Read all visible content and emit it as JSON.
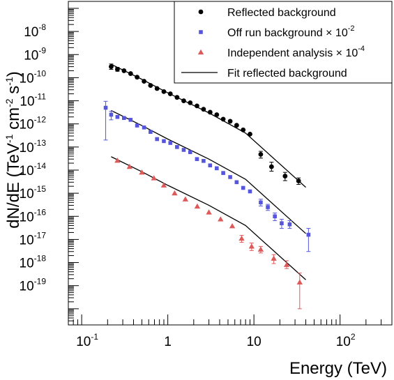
{
  "chart_data": {
    "type": "scatter",
    "xlabel": "Energy (TeV)",
    "ylabel": "dN/dE (TeV^-1 cm^-2 s^-1)",
    "ylabel_parts": {
      "prefix": "dN/dE (TeV",
      "exp1": "-1",
      "mid1": " cm",
      "exp2": "-2",
      "mid2": " s",
      "exp3": "-1",
      "suffix": ")"
    },
    "x_scale": "log",
    "y_scale": "log",
    "xlim": [
      0.07,
      400
    ],
    "ylim": [
      2e-21,
      2e-07
    ],
    "grid": false,
    "legend_position": "top-right",
    "x_ticks": [
      {
        "value": 0.1,
        "base": "10",
        "exp": "-1"
      },
      {
        "value": 1,
        "base": "1",
        "exp": ""
      },
      {
        "value": 10,
        "base": "10",
        "exp": ""
      },
      {
        "value": 100,
        "base": "10",
        "exp": "2"
      }
    ],
    "y_ticks": [
      {
        "value": 1e-08,
        "base": "10",
        "exp": "-8"
      },
      {
        "value": 1e-09,
        "base": "10",
        "exp": "-9"
      },
      {
        "value": 1e-10,
        "base": "10",
        "exp": "-10"
      },
      {
        "value": 1e-11,
        "base": "10",
        "exp": "-11"
      },
      {
        "value": 1e-12,
        "base": "10",
        "exp": "-12"
      },
      {
        "value": 1e-13,
        "base": "10",
        "exp": "-13"
      },
      {
        "value": 1e-14,
        "base": "10",
        "exp": "-14"
      },
      {
        "value": 1e-15,
        "base": "10",
        "exp": "-15"
      },
      {
        "value": 1e-16,
        "base": "10",
        "exp": "-16"
      },
      {
        "value": 1e-17,
        "base": "10",
        "exp": "-17"
      },
      {
        "value": 1e-18,
        "base": "10",
        "exp": "-18"
      },
      {
        "value": 1e-19,
        "base": "10",
        "exp": "-19"
      }
    ],
    "legend": [
      {
        "label": "Reflected background",
        "sup": "",
        "marker": "circle",
        "color": "#000000"
      },
      {
        "label": "Off run background × 10",
        "sup": "-2",
        "marker": "square",
        "color": "#5555dd"
      },
      {
        "label": "Independent analysis × 10",
        "sup": "-4",
        "marker": "triangle",
        "color": "#dd5a5a"
      },
      {
        "label": "Fit reflected background",
        "sup": "",
        "marker": "line",
        "color": "#000000"
      }
    ],
    "series": [
      {
        "name": "Reflected background",
        "marker": "circle",
        "color": "#000000",
        "points": [
          {
            "x": 0.22,
            "y": 3e-10,
            "lo": 2.3e-10,
            "hi": 3.9e-10
          },
          {
            "x": 0.26,
            "y": 2.3e-10,
            "lo": 1.9e-10,
            "hi": 2.8e-10
          },
          {
            "x": 0.31,
            "y": 2e-10
          },
          {
            "x": 0.37,
            "y": 1.5e-10
          },
          {
            "x": 0.44,
            "y": 1.05e-10
          },
          {
            "x": 0.53,
            "y": 7e-11
          },
          {
            "x": 0.63,
            "y": 4.6e-11
          },
          {
            "x": 0.75,
            "y": 3.4e-11
          },
          {
            "x": 0.9,
            "y": 2.5e-11
          },
          {
            "x": 1.07,
            "y": 2e-11
          },
          {
            "x": 1.28,
            "y": 1.4e-11
          },
          {
            "x": 1.53,
            "y": 1e-11
          },
          {
            "x": 1.82,
            "y": 8.2e-12
          },
          {
            "x": 2.18,
            "y": 6e-12
          },
          {
            "x": 2.6,
            "y": 4.3e-12
          },
          {
            "x": 3.1,
            "y": 3.2e-12
          },
          {
            "x": 3.7,
            "y": 2.5e-12
          },
          {
            "x": 4.4,
            "y": 1.6e-12
          },
          {
            "x": 5.3,
            "y": 1.3e-12
          },
          {
            "x": 6.3,
            "y": 8.7e-13
          },
          {
            "x": 7.5,
            "y": 5.5e-13
          },
          {
            "x": 9.0,
            "y": 3.6e-13
          },
          {
            "x": 12.0,
            "y": 4.8e-14,
            "lo": 3.3e-14,
            "hi": 6.5e-14
          },
          {
            "x": 16.0,
            "y": 1.4e-14,
            "lo": 9e-15,
            "hi": 2.2e-14
          },
          {
            "x": 23.0,
            "y": 5.5e-15,
            "lo": 3.5e-15,
            "hi": 8e-15
          },
          {
            "x": 33.0,
            "y": 3.4e-15,
            "lo": 2.4e-15,
            "hi": 4.6e-15
          }
        ]
      },
      {
        "name": "Off run background × 10^-2",
        "marker": "square",
        "color": "#5555dd",
        "points": [
          {
            "x": 0.19,
            "y": 5e-12,
            "lo": 2e-13,
            "hi": 9.5e-12
          },
          {
            "x": 0.22,
            "y": 2.5e-12,
            "lo": 1.5e-12,
            "hi": 3.5e-12
          },
          {
            "x": 0.26,
            "y": 2e-12
          },
          {
            "x": 0.31,
            "y": 1.8e-12
          },
          {
            "x": 0.37,
            "y": 1.5e-12
          },
          {
            "x": 0.44,
            "y": 8.5e-13
          },
          {
            "x": 0.53,
            "y": 7e-13
          },
          {
            "x": 0.63,
            "y": 4.5e-13
          },
          {
            "x": 0.75,
            "y": 2.2e-13
          },
          {
            "x": 0.9,
            "y": 1.8e-13
          },
          {
            "x": 1.07,
            "y": 1.5e-13
          },
          {
            "x": 1.28,
            "y": 1e-13
          },
          {
            "x": 1.53,
            "y": 7.5e-14
          },
          {
            "x": 1.82,
            "y": 6e-14
          },
          {
            "x": 2.18,
            "y": 3e-14
          },
          {
            "x": 2.6,
            "y": 2.5e-14
          },
          {
            "x": 3.1,
            "y": 1.6e-14
          },
          {
            "x": 3.7,
            "y": 1.2e-14
          },
          {
            "x": 4.4,
            "y": 7.5e-15
          },
          {
            "x": 5.3,
            "y": 5e-15
          },
          {
            "x": 6.3,
            "y": 3e-15
          },
          {
            "x": 7.5,
            "y": 1.7e-15
          },
          {
            "x": 9.0,
            "y": 1.2e-15
          },
          {
            "x": 12.0,
            "y": 4e-16,
            "lo": 2.8e-16,
            "hi": 5.5e-16
          },
          {
            "x": 14.5,
            "y": 2.5e-16,
            "lo": 1.8e-16,
            "hi": 3.3e-16
          },
          {
            "x": 17.5,
            "y": 1e-16,
            "lo": 6.5e-17,
            "hi": 1.4e-16
          },
          {
            "x": 21.0,
            "y": 5e-17,
            "lo": 3e-17,
            "hi": 7.5e-17
          },
          {
            "x": 26.0,
            "y": 4.5e-17,
            "lo": 3e-17,
            "hi": 6.5e-17
          },
          {
            "x": 43.0,
            "y": 1.6e-17,
            "lo": 3e-18,
            "hi": 3e-17
          }
        ]
      },
      {
        "name": "Independent analysis × 10^-4",
        "marker": "triangle",
        "color": "#dd5a5a",
        "points": [
          {
            "x": 0.26,
            "y": 2.6e-14
          },
          {
            "x": 0.36,
            "y": 1.4e-14
          },
          {
            "x": 0.5,
            "y": 8e-15
          },
          {
            "x": 0.69,
            "y": 4.5e-15
          },
          {
            "x": 0.9,
            "y": 2.2e-15
          },
          {
            "x": 1.2,
            "y": 1e-15
          },
          {
            "x": 1.6,
            "y": 5.5e-16
          },
          {
            "x": 2.2,
            "y": 2.7e-16
          },
          {
            "x": 3.0,
            "y": 1.5e-16
          },
          {
            "x": 4.1,
            "y": 7.5e-17
          },
          {
            "x": 5.6,
            "y": 3.8e-17
          },
          {
            "x": 7.2,
            "y": 1.1e-17,
            "lo": 7.5e-18,
            "hi": 1.5e-17
          },
          {
            "x": 9.4,
            "y": 5e-18,
            "lo": 3.3e-18,
            "hi": 7e-18
          },
          {
            "x": 12.0,
            "y": 3.7e-18,
            "lo": 2.6e-18,
            "hi": 5e-18
          },
          {
            "x": 17.0,
            "y": 1.5e-18,
            "lo": 9e-19,
            "hi": 2.2e-18
          },
          {
            "x": 24.0,
            "y": 8e-19,
            "lo": 5.5e-19,
            "hi": 1.2e-18
          },
          {
            "x": 34.0,
            "y": 1.4e-19,
            "lo": 1e-20,
            "hi": 3.5e-19
          }
        ]
      }
    ],
    "fits": [
      {
        "name": "Fit reflected background",
        "color": "#000000",
        "points": [
          [
            0.22,
            3.8e-10
          ],
          [
            0.5,
            8.5e-11
          ],
          [
            1.0,
            2.2e-11
          ],
          [
            3.0,
            3e-12
          ],
          [
            8.0,
            4e-13
          ],
          [
            40.0,
            1.8e-15
          ]
        ]
      },
      {
        "name": "Fit × 10^-2",
        "color": "#000000",
        "points": [
          [
            0.22,
            3.8e-12
          ],
          [
            0.5,
            8.5e-13
          ],
          [
            1.0,
            2.2e-13
          ],
          [
            3.0,
            3e-14
          ],
          [
            8.0,
            4e-15
          ],
          [
            40.0,
            1.8e-17
          ]
        ]
      },
      {
        "name": "Fit × 10^-4",
        "color": "#000000",
        "points": [
          [
            0.22,
            3.8e-14
          ],
          [
            0.5,
            8.5e-15
          ],
          [
            1.0,
            2.2e-15
          ],
          [
            3.0,
            3e-16
          ],
          [
            8.0,
            4e-17
          ],
          [
            40.0,
            1.8e-19
          ]
        ]
      }
    ]
  }
}
